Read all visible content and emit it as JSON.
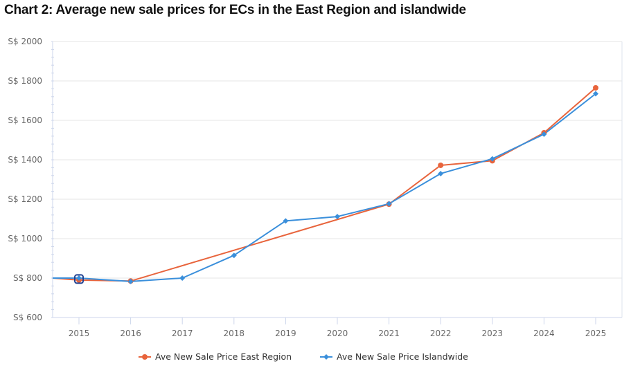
{
  "chart_data": {
    "type": "line",
    "title": "Chart 2: Average new sale prices for ECs in the East Region and islandwide",
    "xlabel": "",
    "ylabel": "",
    "categories": [
      "2015",
      "2016",
      "2017",
      "2018",
      "2019",
      "2020",
      "2021",
      "2022",
      "2023",
      "2024",
      "2025"
    ],
    "y_tick_labels": [
      "S$ 600",
      "S$ 800",
      "S$ 1000",
      "S$ 1200",
      "S$ 1400",
      "S$ 1600",
      "S$ 1800",
      "S$ 2000"
    ],
    "y_ticks": [
      600,
      800,
      1000,
      1200,
      1400,
      1600,
      1800,
      2000
    ],
    "ylim": [
      600,
      2000
    ],
    "grid": true,
    "legend_position": "bottom-center",
    "series": [
      {
        "name": "Ave New Sale Price East Region",
        "color": "#e8643c",
        "marker": "circle",
        "lead_in_value": 800,
        "values": [
          790,
          785,
          null,
          null,
          null,
          null,
          1175,
          1372,
          1395,
          1537,
          1765
        ]
      },
      {
        "name": "Ave New Sale Price Islandwide",
        "color": "#3a8fdb",
        "marker": "diamond",
        "lead_in_value": 800,
        "values": [
          800,
          783,
          800,
          915,
          1090,
          1112,
          1177,
          1330,
          1405,
          1530,
          1735
        ]
      }
    ],
    "highlighted_point": {
      "category": "2015",
      "highlight_color": "#1f3f8f"
    }
  }
}
